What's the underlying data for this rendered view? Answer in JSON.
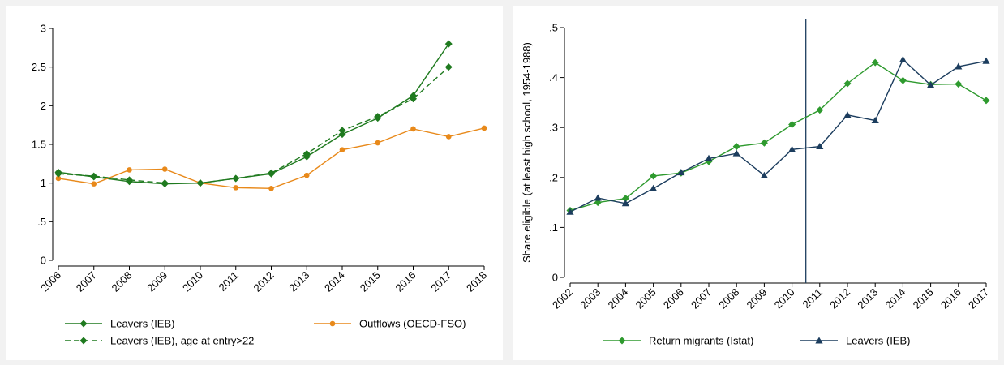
{
  "chart_data": [
    {
      "type": "line",
      "x": [
        "2006",
        "2007",
        "2008",
        "2009",
        "2010",
        "2011",
        "2012",
        "2013",
        "2014",
        "2015",
        "2016",
        "2017",
        "2018"
      ],
      "ylim": [
        0,
        3
      ],
      "yticks": [
        0,
        0.5,
        1,
        1.5,
        2,
        2.5,
        3
      ],
      "ytick_labels": [
        "0",
        ".5",
        "1",
        "1.5",
        "2",
        "2.5",
        "3"
      ],
      "ylabel": "",
      "xlabel": "",
      "grid": false,
      "legend_position": "bottom",
      "series": [
        {
          "name": "Leavers (IEB)",
          "color": "#1f7a1f",
          "marker": "diamond",
          "dash": "solid",
          "values": [
            1.14,
            1.08,
            1.02,
            0.99,
            1.0,
            1.06,
            1.12,
            1.34,
            1.63,
            1.84,
            2.13,
            2.8,
            null
          ]
        },
        {
          "name": "Outflows (OECD-FSO)",
          "color": "#e8891a",
          "marker": "circle",
          "dash": "solid",
          "values": [
            1.06,
            0.99,
            1.17,
            1.18,
            1.0,
            0.94,
            0.93,
            1.1,
            1.43,
            1.52,
            1.7,
            1.6,
            1.71
          ]
        },
        {
          "name": "Leavers (IEB), age at entry>22",
          "color": "#1f7a1f",
          "marker": "diamond",
          "dash": "dashed",
          "values": [
            1.12,
            1.09,
            1.04,
            1.0,
            1.0,
            1.06,
            1.13,
            1.38,
            1.68,
            1.86,
            2.09,
            2.5,
            null
          ]
        }
      ]
    },
    {
      "type": "line",
      "x": [
        "2002",
        "2003",
        "2004",
        "2005",
        "2006",
        "2007",
        "2008",
        "2009",
        "2010",
        "2011",
        "2012",
        "2013",
        "2014",
        "2015",
        "2016",
        "2017"
      ],
      "ylim": [
        0,
        0.5
      ],
      "yticks": [
        0,
        0.1,
        0.2,
        0.3,
        0.4,
        0.5
      ],
      "ytick_labels": [
        "0",
        ".1",
        ".2",
        ".3",
        ".4",
        ".5"
      ],
      "ylabel": "Share eligible (at least high school, 1954-1988)",
      "xlabel": "",
      "grid": false,
      "legend_position": "bottom",
      "vline_x": 2010.5,
      "series": [
        {
          "name": "Return migrants (Istat)",
          "color": "#2e9a2e",
          "marker": "diamond",
          "dash": "solid",
          "values": [
            0.134,
            0.15,
            0.158,
            0.203,
            0.209,
            0.232,
            0.262,
            0.269,
            0.306,
            0.335,
            0.388,
            0.43,
            0.394,
            0.386,
            0.387,
            0.354
          ]
        },
        {
          "name": "Leavers (IEB)",
          "color": "#1c3d5e",
          "marker": "triangle",
          "dash": "solid",
          "values": [
            0.131,
            0.159,
            0.148,
            0.178,
            0.21,
            0.238,
            0.248,
            0.204,
            0.256,
            0.262,
            0.325,
            0.314,
            0.436,
            0.385,
            0.422,
            0.433
          ]
        }
      ]
    }
  ]
}
